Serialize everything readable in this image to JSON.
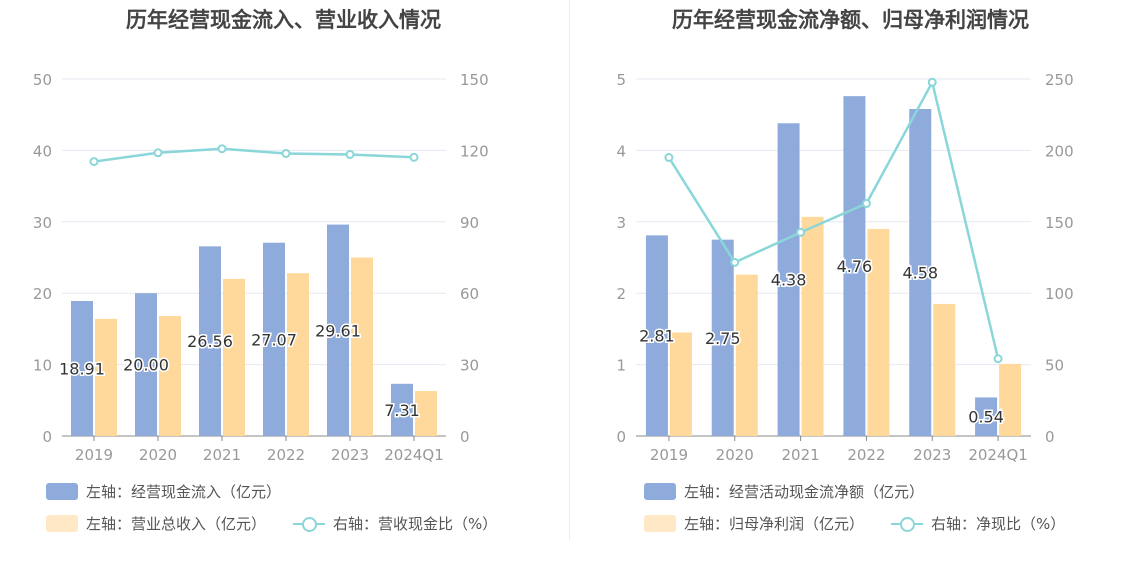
{
  "colors": {
    "bar1": "#8eabdb",
    "bar2": "#fed99b",
    "line": "#8ad6d8",
    "grid": "#e6e9f2",
    "axis": "#999999"
  },
  "chart_data": [
    {
      "type": "bar",
      "title": "历年经营现金流入、营业收入情况",
      "categories": [
        "2019",
        "2020",
        "2021",
        "2022",
        "2023",
        "2024Q1"
      ],
      "y_left": {
        "ticks": [
          "0",
          "10",
          "20",
          "30",
          "40",
          "50"
        ],
        "ylim": [
          0,
          50
        ]
      },
      "y_right": {
        "ticks": [
          "0",
          "30",
          "60",
          "90",
          "120",
          "150"
        ],
        "ylim": [
          0,
          150
        ]
      },
      "series": [
        {
          "name": "左轴：经营现金流入（亿元）",
          "type": "bar",
          "axis": "left",
          "values": [
            18.91,
            20.0,
            26.56,
            27.07,
            29.61,
            7.31
          ],
          "labels": [
            "18.91",
            "20.00",
            "26.56",
            "27.07",
            "29.61",
            "7.31"
          ]
        },
        {
          "name": "左轴：营业总收入（亿元）",
          "type": "bar",
          "axis": "left",
          "values": [
            16.4,
            16.8,
            22.0,
            22.8,
            25.0,
            6.3
          ]
        },
        {
          "name": "右轴：营收现金比（%）",
          "type": "line",
          "axis": "right",
          "values": [
            115.3,
            119.0,
            120.7,
            118.7,
            118.3,
            117.1
          ]
        }
      ],
      "legend_position": "bottom-left"
    },
    {
      "type": "bar",
      "title": "历年经营现金流净额、归母净利润情况",
      "categories": [
        "2019",
        "2020",
        "2021",
        "2022",
        "2023",
        "2024Q1"
      ],
      "y_left": {
        "ticks": [
          "0",
          "1",
          "2",
          "3",
          "4",
          "5"
        ],
        "ylim": [
          0,
          5
        ]
      },
      "y_right": {
        "ticks": [
          "0",
          "50",
          "100",
          "150",
          "200",
          "250"
        ],
        "ylim": [
          0,
          250
        ]
      },
      "series": [
        {
          "name": "左轴：经营活动现金流净额（亿元）",
          "type": "bar",
          "axis": "left",
          "values": [
            2.81,
            2.75,
            4.38,
            4.76,
            4.58,
            0.54
          ],
          "labels": [
            "2.81",
            "2.75",
            "4.38",
            "4.76",
            "4.58",
            "0.54"
          ]
        },
        {
          "name": "左轴：归母净利润（亿元）",
          "type": "bar",
          "axis": "left",
          "values": [
            1.45,
            2.26,
            3.07,
            2.9,
            1.85,
            1.01
          ]
        },
        {
          "name": "右轴：净现比（%）",
          "type": "line",
          "axis": "right",
          "values": [
            195.0,
            121.6,
            142.6,
            162.8,
            247.7,
            54.1
          ]
        }
      ],
      "legend_position": "bottom-left"
    }
  ]
}
